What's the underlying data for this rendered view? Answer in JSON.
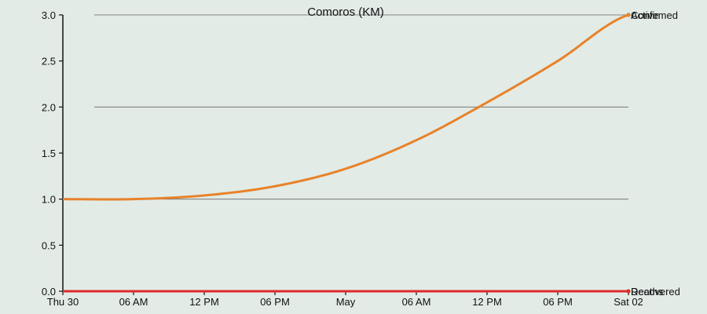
{
  "chart_data": {
    "type": "line",
    "title": "Comoros (KM)",
    "xlabel": "",
    "ylabel": "",
    "ylim": [
      0,
      3
    ],
    "yticks": [
      "0.0",
      "0.5",
      "1.0",
      "1.5",
      "2.0",
      "2.5",
      "3.0"
    ],
    "grid": true,
    "x_ticks": [
      "Thu 30",
      "06 AM",
      "12 PM",
      "06 PM",
      "May",
      "06 AM",
      "12 PM",
      "06 PM",
      "Sat 02"
    ],
    "x": [
      "Thu 30 00:00",
      "Thu 30 06:00",
      "Thu 30 12:00",
      "Thu 30 18:00",
      "Fri 01 00:00",
      "Fri 01 06:00",
      "Fri 01 12:00",
      "Fri 01 18:00",
      "Sat 02 00:00"
    ],
    "series": [
      {
        "name": "Confirmed",
        "color": "#333333",
        "values": [
          1.0,
          1.0,
          1.04,
          1.14,
          1.33,
          1.64,
          2.05,
          2.5,
          3.0
        ]
      },
      {
        "name": "Active",
        "color": "#e8822a",
        "values": [
          1.0,
          1.0,
          1.04,
          1.14,
          1.33,
          1.64,
          2.05,
          2.5,
          3.0
        ]
      },
      {
        "name": "Recovered",
        "color": "#2b7a2b",
        "values": [
          0,
          0,
          0,
          0,
          0,
          0,
          0,
          0,
          0
        ]
      },
      {
        "name": "Deaths",
        "color": "#e02a2a",
        "values": [
          0,
          0,
          0,
          0,
          0,
          0,
          0,
          0,
          0
        ]
      }
    ]
  }
}
